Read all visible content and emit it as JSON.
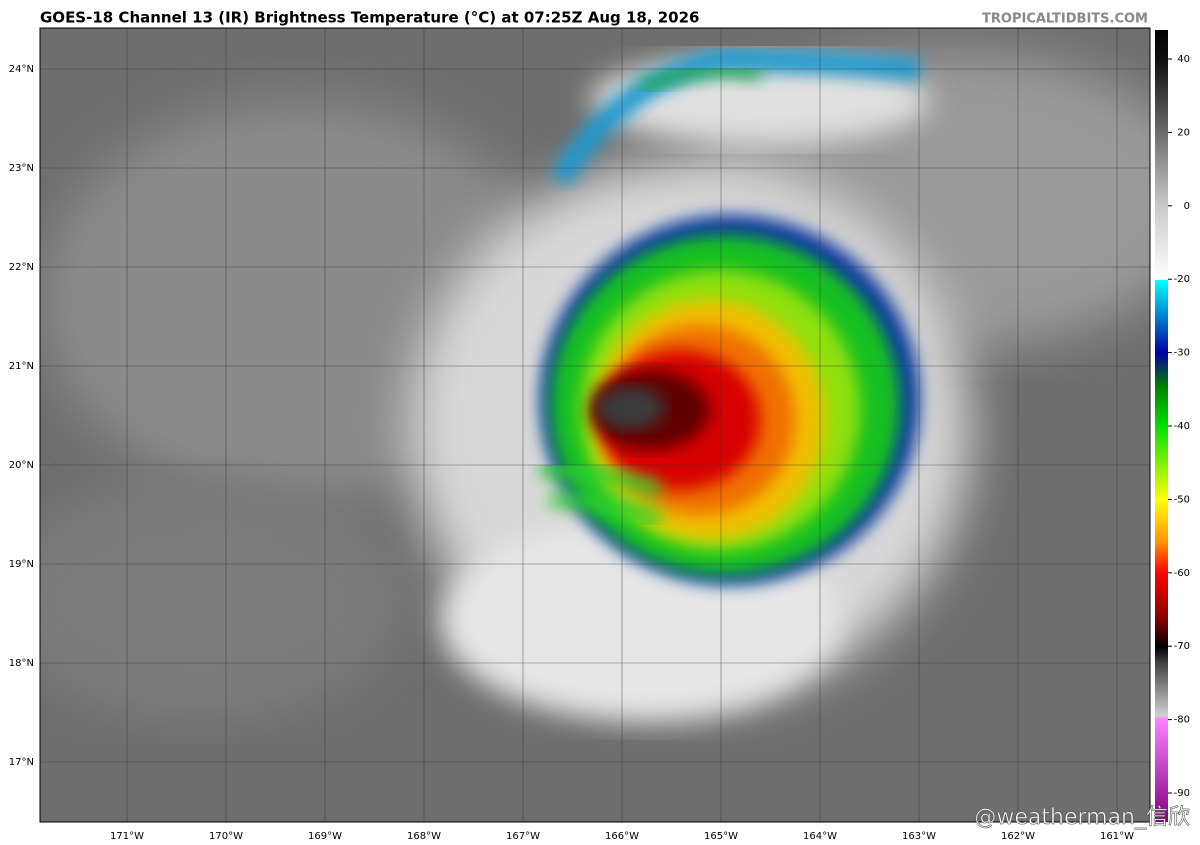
{
  "header": {
    "title": "GOES-18 Channel 13 (IR) Brightness Temperature (°C) at 07:25Z Aug 18, 2026",
    "credit": "TROPICALTIDBITS.COM"
  },
  "map": {
    "lat_labels": [
      "24°N",
      "23°N",
      "22°N",
      "21°N",
      "20°N",
      "19°N",
      "18°N",
      "17°N"
    ],
    "lon_labels": [
      "171°W",
      "170°W",
      "169°W",
      "168°W",
      "167°W",
      "166°W",
      "165°W",
      "164°W",
      "163°W",
      "162°W",
      "161°W"
    ]
  },
  "colorbar": {
    "ticks": [
      40,
      20,
      0,
      -20,
      -30,
      -40,
      -50,
      -60,
      -70,
      -80,
      -90
    ]
  },
  "watermark": "@weatherman_信欣"
}
